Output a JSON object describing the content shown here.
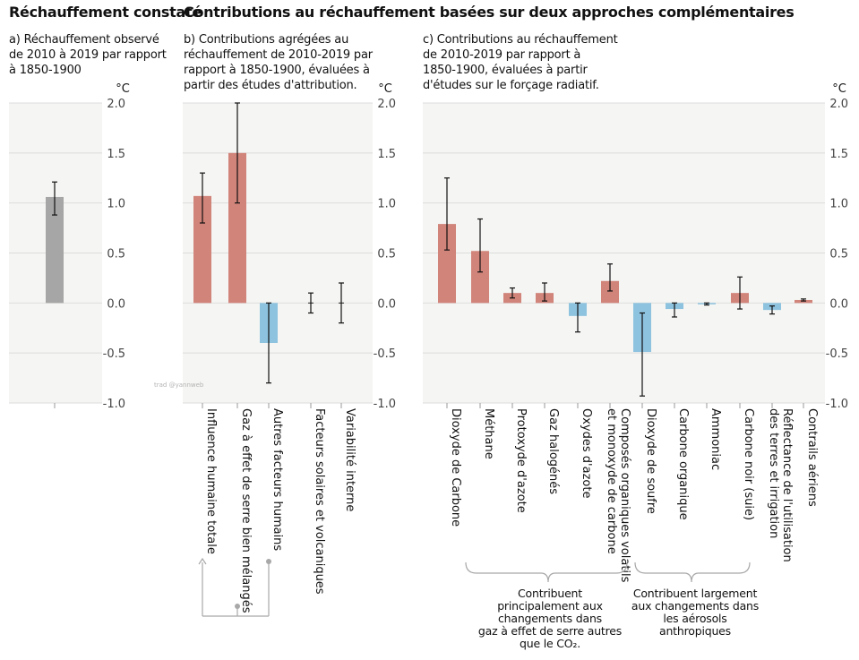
{
  "headers": {
    "left": "Réchauffement constaté",
    "main": "Contributions au réchauffement basées sur deux approches complémentaires"
  },
  "watermark": "trad @yannweb",
  "colors": {
    "gray": "#a6a6a6",
    "red": "#d1847a",
    "blue": "#8ec3df",
    "panel_bg": "#f5f5f3",
    "grid": "#dcdcdc"
  },
  "groups": {
    "human_bracket": "",
    "ghg_note": "Contribuent\nprincipalement aux\nchangements dans\ngaz à effet de serre autres\nque le CO₂.",
    "aerosol_note": "Contribuent largement\naux changements dans\nles aérosols\nanthropiques"
  },
  "chart_data": [
    {
      "type": "bar",
      "panel": "a",
      "subtitle": "a) Réchauffement observé\nde 2010 à 2019 par rapport\nà 1850-1900",
      "unit": "°C",
      "ylim": [
        -1.0,
        2.0
      ],
      "yticks": [
        "2.0",
        "1.5",
        "1.0",
        "0.5",
        "0.0",
        "-0.5",
        "-1.0"
      ],
      "categories": [
        ""
      ],
      "values": [
        1.06
      ],
      "error_low": [
        0.88
      ],
      "error_high": [
        1.21
      ],
      "colors": [
        "gray"
      ]
    },
    {
      "type": "bar",
      "panel": "b",
      "subtitle": "b) Contributions agrégées au\nréchauffement de 2010-2019 par\nrapport à 1850-1900, évaluées à\npartir des études d'attribution.",
      "unit": "°C",
      "ylim": [
        -1.0,
        2.0
      ],
      "yticks": [
        "2.0",
        "1.5",
        "1.0",
        "0.5",
        "0.0",
        "-0.5",
        "-1.0"
      ],
      "categories": [
        "Influence humaine totale",
        "Gaz à effet de serre bien mélangés",
        "Autres facteurs humains",
        "Facteurs solaires et volcaniques",
        "Variabilité interne"
      ],
      "values": [
        1.07,
        1.5,
        -0.4,
        0.0,
        0.0
      ],
      "error_low": [
        0.8,
        1.0,
        -0.8,
        -0.1,
        -0.2
      ],
      "error_high": [
        1.3,
        2.0,
        0.0,
        0.1,
        0.2
      ],
      "colors": [
        "red",
        "red",
        "blue",
        "none",
        "none"
      ]
    },
    {
      "type": "bar",
      "panel": "c",
      "subtitle": "c) Contributions au réchauffement\nde 2010-2019 par rapport à\n1850-1900, évaluées à partir\nd'études sur le forçage radiatif.",
      "unit": "°C",
      "ylim": [
        -1.0,
        2.0
      ],
      "yticks": [
        "2.0",
        "1.5",
        "1.0",
        "0.5",
        "0.0",
        "-0.5",
        "-1.0"
      ],
      "categories": [
        "Dioxyde de Carbone",
        "Méthane",
        "Protoxyde d'azote",
        "Gaz halogénés",
        "Oxydes d'azote",
        "Composés organiques volatils et monoxyde de carbone",
        "Dioxyde de soufre",
        "Carbone organique",
        "Ammoniac",
        "Carbone noir (suie)",
        "Réflectance de l'utilisation des terres et irrigation",
        "Contrails aériens"
      ],
      "values": [
        0.79,
        0.52,
        0.1,
        0.1,
        -0.13,
        0.22,
        -0.49,
        -0.06,
        -0.01,
        0.1,
        -0.07,
        0.03
      ],
      "error_low": [
        0.53,
        0.31,
        0.05,
        0.02,
        -0.29,
        0.12,
        -0.93,
        -0.14,
        -0.02,
        -0.06,
        -0.11,
        0.02
      ],
      "error_high": [
        1.25,
        0.84,
        0.15,
        0.2,
        0.0,
        0.39,
        -0.1,
        0.0,
        0.0,
        0.26,
        -0.03,
        0.04
      ],
      "colors": [
        "red",
        "red",
        "red",
        "red",
        "blue",
        "red",
        "blue",
        "blue",
        "blue",
        "red",
        "blue",
        "red"
      ]
    }
  ]
}
